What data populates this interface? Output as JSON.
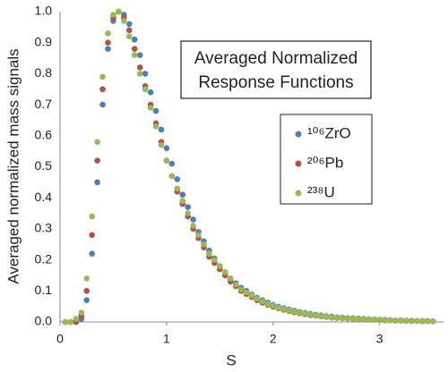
{
  "chart_data": {
    "type": "scatter",
    "xlabel": "S",
    "ylabel": "Averaged normalized mass signals",
    "annotation": [
      "Averaged Normalized",
      "Response Functions"
    ],
    "xlim": [
      0,
      3.6
    ],
    "ylim": [
      0,
      1
    ],
    "xticks": [
      0,
      1,
      2,
      3
    ],
    "yticks": [
      {
        "value": 0,
        "label": "0.0"
      },
      0.1,
      0.2,
      0.3,
      0.4,
      0.5,
      0.6,
      0.7,
      0.8,
      0.9,
      {
        "value": 1,
        "label": "1.0"
      }
    ],
    "grid": false,
    "legend": "right",
    "x": [
      0.05,
      0.1,
      0.15,
      0.2,
      0.25,
      0.3,
      0.35,
      0.4,
      0.45,
      0.5,
      0.55,
      0.6,
      0.65,
      0.7,
      0.75,
      0.8,
      0.85,
      0.9,
      0.95,
      1.0,
      1.05,
      1.1,
      1.15,
      1.2,
      1.25,
      1.3,
      1.35,
      1.4,
      1.45,
      1.5,
      1.55,
      1.6,
      1.65,
      1.7,
      1.75,
      1.8,
      1.85,
      1.9,
      1.95,
      2.0,
      2.05,
      2.1,
      2.15,
      2.2,
      2.25,
      2.3,
      2.35,
      2.4,
      2.45,
      2.5,
      2.55,
      2.6,
      2.65,
      2.7,
      2.75,
      2.8,
      2.85,
      2.9,
      2.95,
      3.0,
      3.05,
      3.1,
      3.15,
      3.2,
      3.25,
      3.3,
      3.35,
      3.4,
      3.45,
      3.5
    ],
    "series": [
      {
        "name": "¹⁰⁶ZrO",
        "color": "#4a7ebb",
        "values": [
          0,
          0,
          0,
          0.01,
          0.07,
          0.22,
          0.45,
          0.7,
          0.88,
          0.97,
          1.0,
          0.99,
          0.96,
          0.91,
          0.86,
          0.8,
          0.74,
          0.68,
          0.62,
          0.56,
          0.51,
          0.46,
          0.41,
          0.37,
          0.33,
          0.29,
          0.26,
          0.23,
          0.205,
          0.18,
          0.16,
          0.14,
          0.125,
          0.11,
          0.1,
          0.088,
          0.078,
          0.07,
          0.062,
          0.055,
          0.049,
          0.044,
          0.04,
          0.036,
          0.032,
          0.029,
          0.026,
          0.023,
          0.021,
          0.019,
          0.017,
          0.015,
          0.014,
          0.013,
          0.012,
          0.011,
          0.01,
          0.009,
          0.008,
          0.007,
          0.007,
          0.006,
          0.005,
          0.005,
          0.004,
          0.004,
          0.003,
          0.003,
          0.003,
          0.002
        ]
      },
      {
        "name": "²⁰⁶Pb",
        "color": "#be4b48",
        "values": [
          0,
          0,
          0,
          0.02,
          0.1,
          0.28,
          0.52,
          0.75,
          0.9,
          0.98,
          1.0,
          0.98,
          0.94,
          0.88,
          0.82,
          0.76,
          0.7,
          0.64,
          0.58,
          0.52,
          0.47,
          0.42,
          0.38,
          0.34,
          0.3,
          0.27,
          0.24,
          0.21,
          0.19,
          0.17,
          0.15,
          0.13,
          0.115,
          0.1,
          0.09,
          0.08,
          0.07,
          0.062,
          0.055,
          0.049,
          0.044,
          0.039,
          0.035,
          0.031,
          0.028,
          0.025,
          0.022,
          0.02,
          0.018,
          0.016,
          0.014,
          0.013,
          0.012,
          0.011,
          0.01,
          0.009,
          0.008,
          0.007,
          0.007,
          0.006,
          0.005,
          0.005,
          0.004,
          0.004,
          0.003,
          0.003,
          0.003,
          0.002,
          0.002,
          0.002
        ]
      },
      {
        "name": "²³⁸U",
        "color": "#98b954",
        "values": [
          0,
          0,
          0.01,
          0.03,
          0.14,
          0.34,
          0.58,
          0.79,
          0.93,
          0.99,
          1.0,
          0.97,
          0.92,
          0.86,
          0.8,
          0.75,
          0.69,
          0.63,
          0.57,
          0.52,
          0.47,
          0.43,
          0.39,
          0.35,
          0.31,
          0.28,
          0.25,
          0.22,
          0.2,
          0.18,
          0.16,
          0.14,
          0.12,
          0.105,
          0.095,
          0.085,
          0.075,
          0.066,
          0.058,
          0.052,
          0.046,
          0.041,
          0.037,
          0.033,
          0.03,
          0.027,
          0.024,
          0.021,
          0.019,
          0.017,
          0.015,
          0.014,
          0.013,
          0.012,
          0.011,
          0.01,
          0.009,
          0.008,
          0.007,
          0.006,
          0.006,
          0.005,
          0.005,
          0.004,
          0.004,
          0.003,
          0.003,
          0.003,
          0.002,
          0.002
        ]
      }
    ]
  }
}
